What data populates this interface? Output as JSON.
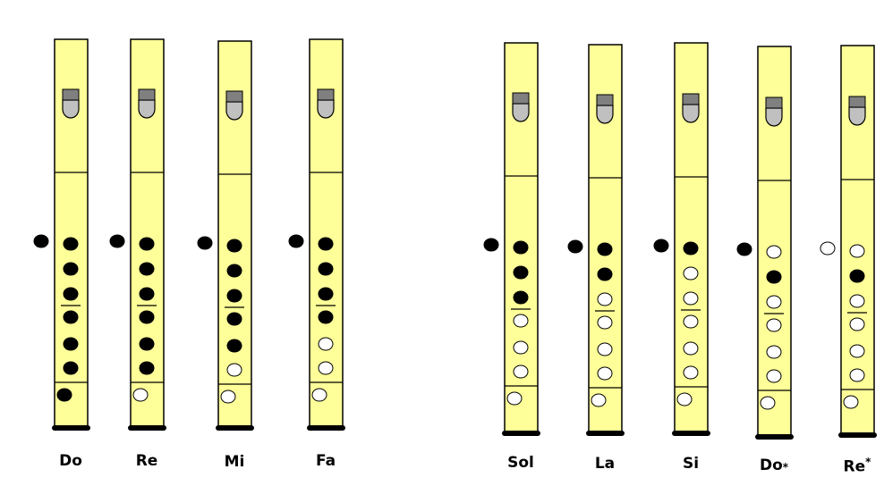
{
  "colors": {
    "body": "#ffff99",
    "outline": "#000000",
    "window_dark": "#808080",
    "window_light": "#c0c0c0",
    "closed_hole": "#000000",
    "open_hole": "#ffffff"
  },
  "hole_legend": {
    "closed": "filled black",
    "open": "white"
  },
  "recorders": [
    {
      "note": "Do",
      "accidental": "",
      "thumb": "closed",
      "holes": [
        "closed",
        "closed",
        "closed",
        "closed",
        "closed",
        "closed",
        "closed"
      ]
    },
    {
      "note": "Re",
      "accidental": "",
      "thumb": "closed",
      "holes": [
        "closed",
        "closed",
        "closed",
        "closed",
        "closed",
        "closed",
        "open"
      ]
    },
    {
      "note": "Mi",
      "accidental": "",
      "thumb": "closed",
      "holes": [
        "closed",
        "closed",
        "closed",
        "closed",
        "closed",
        "open",
        "open"
      ]
    },
    {
      "note": "Fa",
      "accidental": "",
      "thumb": "closed",
      "holes": [
        "closed",
        "closed",
        "closed",
        "closed",
        "open",
        "open",
        "open"
      ]
    },
    {
      "note": "Sol",
      "accidental": "",
      "thumb": "closed",
      "holes": [
        "closed",
        "closed",
        "closed",
        "open",
        "open",
        "open",
        "open"
      ]
    },
    {
      "note": "La",
      "accidental": "",
      "thumb": "closed",
      "holes": [
        "closed",
        "closed",
        "open",
        "open",
        "open",
        "open",
        "open"
      ]
    },
    {
      "note": "Si",
      "accidental": "",
      "thumb": "closed",
      "holes": [
        "closed",
        "open",
        "open",
        "open",
        "open",
        "open",
        "open"
      ]
    },
    {
      "note": "Do",
      "accidental": "*",
      "accidental_position": "sub",
      "thumb": "closed",
      "holes": [
        "open",
        "closed",
        "open",
        "open",
        "open",
        "open",
        "open"
      ]
    },
    {
      "note": "Re",
      "accidental": "*",
      "accidental_position": "sup",
      "thumb": "open",
      "holes": [
        "open",
        "closed",
        "open",
        "open",
        "open",
        "open",
        "open"
      ]
    }
  ]
}
